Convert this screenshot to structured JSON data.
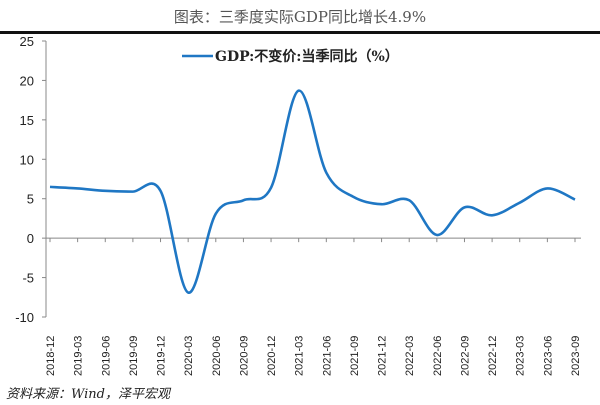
{
  "title": "图表：三季度实际GDP同比增长4.9%",
  "source": "资料来源：Wind，泽平宏观",
  "chart_data": {
    "type": "line",
    "title": "三季度实际GDP同比增长4.9%",
    "xlabel": "",
    "ylabel": "",
    "ylim": [
      -10,
      25
    ],
    "yticks": [
      -10,
      -5,
      0,
      5,
      10,
      15,
      20,
      25
    ],
    "legend": {
      "label": "GDP:不变价:当季同比（%）",
      "placement": "top-center"
    },
    "color": "#1f77c4",
    "categories": [
      "2018-12",
      "2019-03",
      "2019-06",
      "2019-09",
      "2019-12",
      "2020-03",
      "2020-06",
      "2020-09",
      "2020-12",
      "2021-03",
      "2021-06",
      "2021-09",
      "2021-12",
      "2022-03",
      "2022-06",
      "2022-09",
      "2022-12",
      "2023-03",
      "2023-06",
      "2023-09"
    ],
    "series": [
      {
        "name": "GDP:不变价:当季同比（%）",
        "values": [
          6.5,
          6.3,
          6.0,
          5.9,
          6.0,
          -6.9,
          3.1,
          4.8,
          6.4,
          18.7,
          8.3,
          5.2,
          4.3,
          4.8,
          0.4,
          3.9,
          2.9,
          4.5,
          6.3,
          4.9
        ]
      }
    ]
  }
}
